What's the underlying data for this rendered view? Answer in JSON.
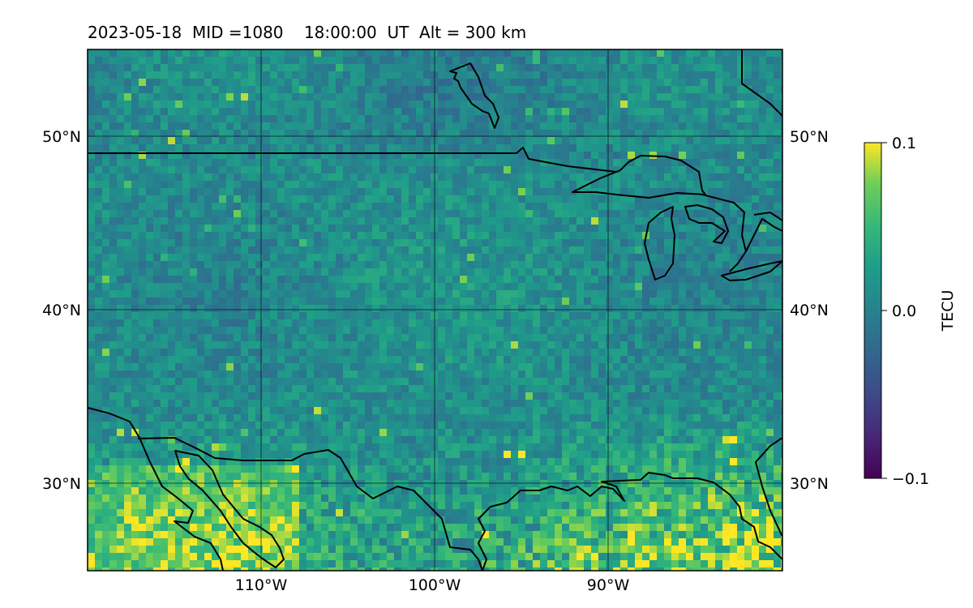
{
  "title": "2023-05-18  MID =1080    18:00:00  UT  Alt = 300 km",
  "lat_labels_left": [
    "50°N",
    "40°N",
    "30°N"
  ],
  "lat_labels_right": [
    "50°N",
    "40°N",
    "30°N"
  ],
  "lon_labels": [
    "110°W",
    "100°W",
    "90°W"
  ],
  "colorbar": {
    "label": "TECU",
    "ticks": [
      "0.1",
      "0.0",
      "−0.1"
    ],
    "min": -0.1,
    "max": 0.1,
    "colormap": "viridis"
  },
  "map_extent": {
    "lon_min": -120,
    "lon_max": -80,
    "lat_min": 25,
    "lat_max": 55
  },
  "gridlines": {
    "lons": [
      -110,
      -100,
      -90
    ],
    "lats": [
      30,
      40,
      50
    ]
  },
  "colors": {
    "frame": "#000000",
    "coast": "#000000",
    "grid": "#000000"
  }
}
